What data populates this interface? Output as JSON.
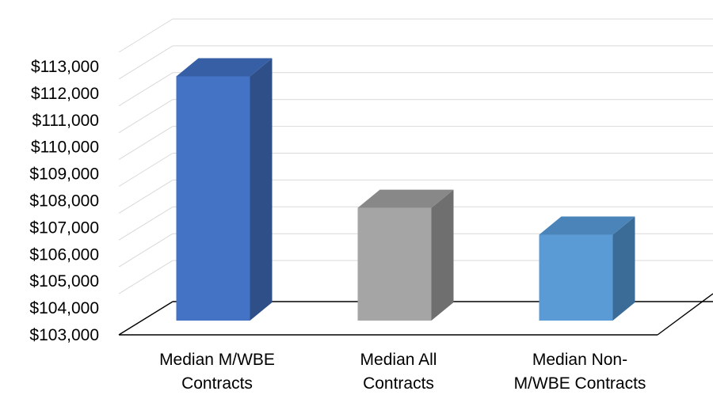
{
  "chart_data": {
    "type": "bar",
    "style": "3d-column",
    "title": "",
    "xlabel": "",
    "ylabel": "",
    "categories": [
      [
        "Median M/WBE",
        "Contracts"
      ],
      [
        "Median All",
        "Contracts"
      ],
      [
        "Median Non-",
        "M/WBE Contracts"
      ]
    ],
    "values": [
      112100,
      107200,
      106200
    ],
    "ylim": [
      103000,
      113000
    ],
    "y_ticks": [
      "$103,000",
      "$104,000",
      "$105,000",
      "$106,000",
      "$107,000",
      "$108,000",
      "$109,000",
      "$110,000",
      "$111,000",
      "$112,000",
      "$113,000"
    ],
    "grid": true,
    "legend": "none",
    "colors": [
      {
        "front": "#4472c4",
        "side": "#2f4f88",
        "top": "#365fa6"
      },
      {
        "front": "#a5a5a5",
        "side": "#6f6f6f",
        "top": "#888888"
      },
      {
        "front": "#5b9bd5",
        "side": "#3b6c98",
        "top": "#4a84b8"
      }
    ]
  }
}
